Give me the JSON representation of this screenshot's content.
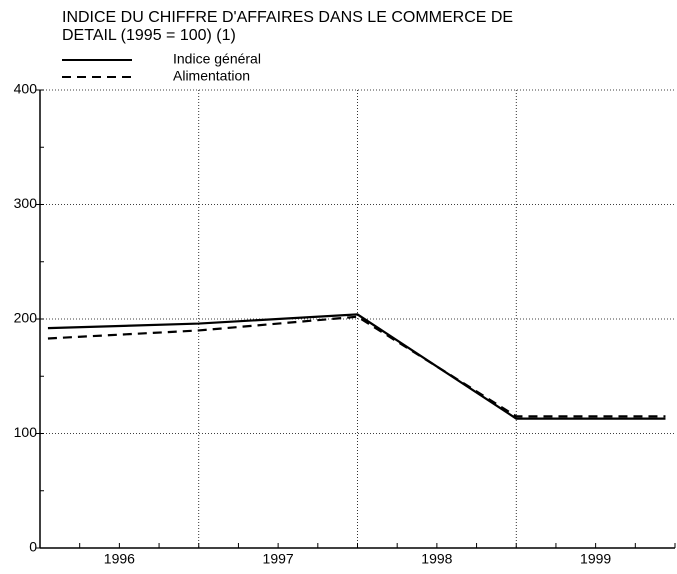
{
  "chart_data": {
    "type": "line",
    "title": "INDICE DU CHIFFRE D'AFFAIRES DANS LE COMMERCE DE DETAIL (1995 = 100) (1)",
    "x": [
      1996.05,
      1997.0,
      1998.0,
      1999.0,
      1999.94
    ],
    "series": [
      {
        "name": "Indice général",
        "color": "#000000",
        "dash": "solid",
        "values": [
          192,
          196,
          204,
          113,
          113
        ]
      },
      {
        "name": "Alimentation",
        "color": "#000000",
        "dash": "dashed",
        "values": [
          183,
          190,
          202,
          115,
          115
        ]
      }
    ],
    "xlim": [
      1996,
      2000
    ],
    "xticks": [
      {
        "value": 1996.5,
        "label": "1996"
      },
      {
        "value": 1997.5,
        "label": "1997"
      },
      {
        "value": 1998.5,
        "label": "1998"
      },
      {
        "value": 1999.5,
        "label": "1999"
      }
    ],
    "xgrid": [
      1997,
      1998,
      1999
    ],
    "ylim": [
      0,
      400
    ],
    "yticks": [
      0,
      100,
      200,
      300,
      400
    ],
    "grid": true
  }
}
